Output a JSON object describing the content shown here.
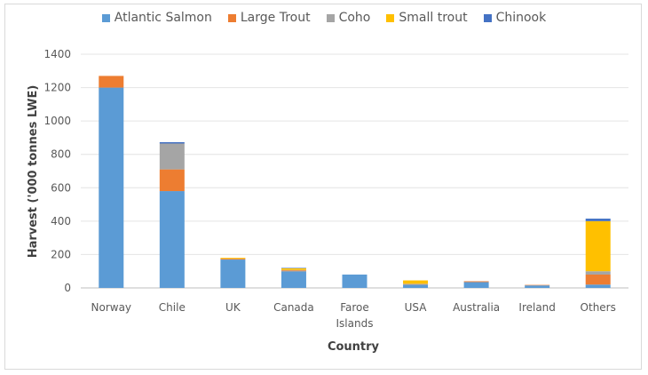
{
  "chart_data": {
    "type": "bar",
    "stacked": true,
    "xlabel": "Country",
    "ylabel": "Harvest ('000 tonnes LWE)",
    "ylim": [
      0,
      1400
    ],
    "yticks": [
      0,
      200,
      400,
      600,
      800,
      1000,
      1200,
      1400
    ],
    "grid": true,
    "legend_position": "top",
    "categories": [
      "Norway",
      "Chile",
      "UK",
      "Canada",
      "Faroe Islands",
      "USA",
      "Australia",
      "Ireland",
      "Others"
    ],
    "series": [
      {
        "name": "Atlantic Salmon",
        "color": "#5b9bd5",
        "values": [
          1200,
          580,
          170,
          100,
          80,
          20,
          35,
          15,
          20
        ]
      },
      {
        "name": "Large Trout",
        "color": "#ed7d31",
        "values": [
          70,
          130,
          5,
          5,
          0,
          3,
          5,
          3,
          60
        ]
      },
      {
        "name": "Coho",
        "color": "#a5a5a5",
        "values": [
          0,
          155,
          0,
          3,
          0,
          2,
          0,
          0,
          20
        ]
      },
      {
        "name": "Small trout",
        "color": "#ffc000",
        "values": [
          0,
          0,
          5,
          10,
          0,
          20,
          0,
          0,
          300
        ]
      },
      {
        "name": "Chinook",
        "color": "#4472c4",
        "values": [
          0,
          8,
          0,
          2,
          0,
          0,
          0,
          0,
          15
        ]
      }
    ]
  }
}
